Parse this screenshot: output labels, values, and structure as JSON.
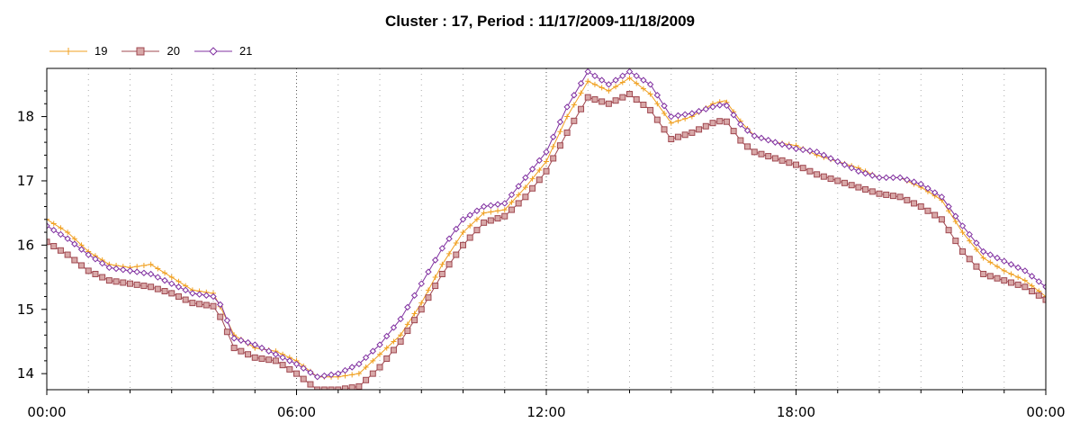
{
  "chart_data": {
    "type": "line",
    "title": "Cluster : 17, Period : 11/17/2009-11/18/2009",
    "xlabel": "",
    "ylabel": "",
    "x_ticks": [
      "00:00",
      "06:00",
      "12:00",
      "18:00",
      "00:00"
    ],
    "x_range_hours": [
      0,
      24
    ],
    "y_ticks": [
      "14",
      "15",
      "16",
      "17",
      "18"
    ],
    "ylim": [
      13.75,
      18.75
    ],
    "grid": true,
    "legend_position": "top-left",
    "series": [
      {
        "name": "19",
        "color": "#f0a020",
        "marker": "plus",
        "points": [
          [
            0,
            16.4
          ],
          [
            0.5,
            16.2
          ],
          [
            1,
            15.9
          ],
          [
            1.5,
            15.7
          ],
          [
            2,
            15.65
          ],
          [
            2.5,
            15.7
          ],
          [
            3,
            15.5
          ],
          [
            3.5,
            15.3
          ],
          [
            4,
            15.25
          ],
          [
            4.2,
            15.0
          ],
          [
            4.5,
            14.6
          ],
          [
            5,
            14.4
          ],
          [
            5.5,
            14.35
          ],
          [
            6,
            14.2
          ],
          [
            6.5,
            13.95
          ],
          [
            7,
            13.95
          ],
          [
            7.5,
            14.0
          ],
          [
            8,
            14.3
          ],
          [
            8.5,
            14.6
          ],
          [
            9,
            15.1
          ],
          [
            9.5,
            15.7
          ],
          [
            10,
            16.2
          ],
          [
            10.5,
            16.5
          ],
          [
            11,
            16.55
          ],
          [
            11.5,
            16.9
          ],
          [
            12,
            17.3
          ],
          [
            12.5,
            18.0
          ],
          [
            13,
            18.55
          ],
          [
            13.5,
            18.4
          ],
          [
            14,
            18.6
          ],
          [
            14.5,
            18.35
          ],
          [
            15,
            17.9
          ],
          [
            15.5,
            18.0
          ],
          [
            16,
            18.2
          ],
          [
            16.3,
            18.25
          ],
          [
            16.7,
            17.9
          ],
          [
            17,
            17.7
          ],
          [
            17.5,
            17.6
          ],
          [
            18,
            17.55
          ],
          [
            18.5,
            17.4
          ],
          [
            19,
            17.3
          ],
          [
            19.5,
            17.2
          ],
          [
            20,
            17.05
          ],
          [
            20.5,
            17.05
          ],
          [
            21,
            16.9
          ],
          [
            21.5,
            16.7
          ],
          [
            22,
            16.2
          ],
          [
            22.5,
            15.8
          ],
          [
            23,
            15.6
          ],
          [
            23.5,
            15.45
          ],
          [
            24,
            15.2
          ]
        ]
      },
      {
        "name": "20",
        "color": "#a04850",
        "marker": "square",
        "points": [
          [
            0,
            16.05
          ],
          [
            0.5,
            15.85
          ],
          [
            1,
            15.6
          ],
          [
            1.5,
            15.45
          ],
          [
            2,
            15.4
          ],
          [
            2.5,
            15.35
          ],
          [
            3,
            15.25
          ],
          [
            3.5,
            15.1
          ],
          [
            4,
            15.05
          ],
          [
            4.2,
            14.85
          ],
          [
            4.5,
            14.4
          ],
          [
            5,
            14.25
          ],
          [
            5.5,
            14.2
          ],
          [
            6,
            14.0
          ],
          [
            6.5,
            13.75
          ],
          [
            7,
            13.75
          ],
          [
            7.5,
            13.8
          ],
          [
            8,
            14.1
          ],
          [
            8.5,
            14.5
          ],
          [
            9,
            15.0
          ],
          [
            9.5,
            15.55
          ],
          [
            10,
            16.0
          ],
          [
            10.5,
            16.35
          ],
          [
            11,
            16.45
          ],
          [
            11.5,
            16.75
          ],
          [
            12,
            17.15
          ],
          [
            12.5,
            17.75
          ],
          [
            13,
            18.3
          ],
          [
            13.5,
            18.2
          ],
          [
            14,
            18.35
          ],
          [
            14.5,
            18.1
          ],
          [
            15,
            17.65
          ],
          [
            15.5,
            17.75
          ],
          [
            16,
            17.9
          ],
          [
            16.3,
            17.95
          ],
          [
            16.7,
            17.6
          ],
          [
            17,
            17.45
          ],
          [
            17.5,
            17.35
          ],
          [
            18,
            17.25
          ],
          [
            18.5,
            17.1
          ],
          [
            19,
            17.0
          ],
          [
            19.5,
            16.9
          ],
          [
            20,
            16.8
          ],
          [
            20.5,
            16.75
          ],
          [
            21,
            16.6
          ],
          [
            21.5,
            16.4
          ],
          [
            22,
            15.9
          ],
          [
            22.5,
            15.55
          ],
          [
            23,
            15.45
          ],
          [
            23.5,
            15.35
          ],
          [
            24,
            15.15
          ]
        ]
      },
      {
        "name": "21",
        "color": "#8030a0",
        "marker": "diamond",
        "points": [
          [
            0,
            16.3
          ],
          [
            0.5,
            16.1
          ],
          [
            1,
            15.85
          ],
          [
            1.5,
            15.65
          ],
          [
            2,
            15.6
          ],
          [
            2.5,
            15.55
          ],
          [
            3,
            15.4
          ],
          [
            3.5,
            15.25
          ],
          [
            4,
            15.2
          ],
          [
            4.2,
            15.05
          ],
          [
            4.5,
            14.55
          ],
          [
            5,
            14.45
          ],
          [
            5.5,
            14.3
          ],
          [
            6,
            14.15
          ],
          [
            6.5,
            13.95
          ],
          [
            7,
            14.0
          ],
          [
            7.5,
            14.15
          ],
          [
            8,
            14.45
          ],
          [
            8.5,
            14.85
          ],
          [
            9,
            15.4
          ],
          [
            9.5,
            15.95
          ],
          [
            10,
            16.4
          ],
          [
            10.5,
            16.6
          ],
          [
            11,
            16.65
          ],
          [
            11.5,
            17.05
          ],
          [
            12,
            17.45
          ],
          [
            12.5,
            18.15
          ],
          [
            13,
            18.7
          ],
          [
            13.5,
            18.5
          ],
          [
            14,
            18.7
          ],
          [
            14.5,
            18.5
          ],
          [
            15,
            18.0
          ],
          [
            15.5,
            18.05
          ],
          [
            16,
            18.15
          ],
          [
            16.3,
            18.2
          ],
          [
            16.7,
            17.85
          ],
          [
            17,
            17.7
          ],
          [
            17.5,
            17.6
          ],
          [
            18,
            17.5
          ],
          [
            18.5,
            17.45
          ],
          [
            19,
            17.3
          ],
          [
            19.5,
            17.15
          ],
          [
            20,
            17.05
          ],
          [
            20.5,
            17.05
          ],
          [
            21,
            16.95
          ],
          [
            21.5,
            16.75
          ],
          [
            22,
            16.3
          ],
          [
            22.5,
            15.9
          ],
          [
            23,
            15.75
          ],
          [
            23.5,
            15.6
          ],
          [
            24,
            15.35
          ]
        ]
      }
    ]
  }
}
